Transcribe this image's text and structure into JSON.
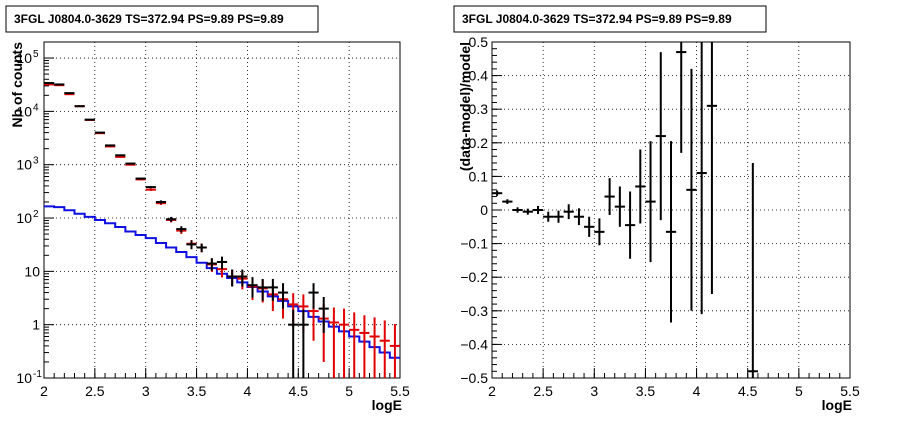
{
  "chart_data": [
    {
      "type": "scatter",
      "title": "3FGL J0804.0-3629 TS=372.94 PS=9.89 PS=9.89",
      "xlabel": "logE",
      "ylabel": "Nb of counts",
      "xlim": [
        2,
        5.5
      ],
      "ylim": [
        0.1,
        200000
      ],
      "log_y": true,
      "grid": true,
      "xticks": [
        "2",
        "2.5",
        "3",
        "3.5",
        "4",
        "4.5",
        "5",
        "5.5"
      ],
      "yticks": [
        {
          "value": 0.1,
          "label": "10",
          "exp": "-1"
        },
        {
          "value": 1,
          "label": "1",
          "exp": ""
        },
        {
          "value": 10,
          "label": "10",
          "exp": ""
        },
        {
          "value": 100,
          "label": "10",
          "exp": "2"
        },
        {
          "value": 1000,
          "label": "10",
          "exp": "3"
        },
        {
          "value": 10000,
          "label": "10",
          "exp": "4"
        },
        {
          "value": 100000,
          "label": "10",
          "exp": "5"
        }
      ],
      "colors": {
        "data": "#000000",
        "model": "#e00000",
        "background": "#1010e0"
      },
      "series": [
        {
          "role": "data",
          "x": [
            2.05,
            2.15,
            2.25,
            2.35,
            2.45,
            2.55,
            2.65,
            2.75,
            2.85,
            2.95,
            3.05,
            3.15,
            3.25,
            3.35,
            3.45,
            3.55,
            3.65,
            3.75,
            3.85,
            3.95,
            4.05,
            4.15,
            4.25,
            4.35,
            4.45,
            4.55,
            4.65,
            4.75
          ],
          "y": [
            34000,
            32000,
            22000,
            12500,
            7000,
            4000,
            2300,
            1500,
            1050,
            550,
            380,
            200,
            95,
            62,
            32,
            28,
            14,
            15,
            8,
            8,
            5.5,
            5,
            5,
            4,
            1,
            1,
            4,
            2
          ],
          "err": [
            180,
            180,
            150,
            110,
            80,
            60,
            45,
            35,
            30,
            22,
            19,
            14,
            10,
            8,
            6,
            5,
            3.7,
            3.9,
            2.8,
            2.8,
            2.3,
            2.2,
            2.2,
            2,
            0.9,
            0.9,
            2,
            1.3
          ]
        },
        {
          "role": "model",
          "x": [
            2.05,
            2.15,
            2.25,
            2.35,
            2.45,
            2.55,
            2.65,
            2.75,
            2.85,
            2.95,
            3.05,
            3.15,
            3.25,
            3.35,
            3.45,
            3.55,
            3.65,
            3.75,
            3.85,
            3.95,
            4.05,
            4.15,
            4.25,
            4.35,
            4.45,
            4.55,
            4.65,
            4.75,
            4.85,
            4.95,
            5.05,
            5.15,
            5.25,
            5.35,
            5.45
          ],
          "y": [
            32000,
            31000,
            21000,
            12500,
            6900,
            3900,
            2200,
            1400,
            1000,
            530,
            340,
            190,
            92,
            58,
            33,
            28,
            13.5,
            11,
            8,
            7.3,
            5.2,
            4.8,
            3.7,
            3,
            2.4,
            2.2,
            1.8,
            1.3,
            1.1,
            1,
            0.8,
            0.7,
            0.6,
            0.5,
            0.4
          ],
          "err": [
            180,
            180,
            145,
            110,
            80,
            60,
            45,
            35,
            30,
            22,
            18,
            14,
            9.5,
            7.6,
            5.7,
            5.3,
            3.7,
            3.3,
            2.8,
            2.7,
            2.3,
            2.2,
            1.9,
            1.7,
            1.5,
            1.5,
            1.3,
            1.1,
            1.0,
            1.0,
            0.9,
            0.8,
            0.77,
            0.7,
            0.63
          ]
        },
        {
          "role": "background",
          "type": "step",
          "x": [
            2.05,
            2.15,
            2.25,
            2.35,
            2.45,
            2.55,
            2.65,
            2.75,
            2.85,
            2.95,
            3.05,
            3.15,
            3.25,
            3.35,
            3.45,
            3.55,
            3.65,
            3.75,
            3.85,
            3.95,
            4.05,
            4.15,
            4.25,
            4.35,
            4.45,
            4.55,
            4.65,
            4.75,
            4.85,
            4.95,
            5.05,
            5.15,
            5.25,
            5.35,
            5.45
          ],
          "y": [
            165,
            160,
            140,
            120,
            105,
            92,
            80,
            68,
            56,
            48,
            42,
            34,
            28,
            23,
            18.5,
            14.5,
            11.5,
            9,
            7.5,
            6.2,
            5.1,
            4.2,
            3.4,
            2.8,
            2.2,
            1.8,
            1.4,
            1.15,
            0.92,
            0.75,
            0.6,
            0.48,
            0.38,
            0.3,
            0.24
          ]
        }
      ]
    },
    {
      "type": "scatter",
      "title": "3FGL J0804.0-3629 TS=372.94 PS=9.89 PS=9.89",
      "xlabel": "logE",
      "ylabel": "(data-model)/model",
      "xlim": [
        2,
        5.5
      ],
      "ylim": [
        -0.5,
        0.5
      ],
      "grid": true,
      "xticks": [
        "2",
        "2.5",
        "3",
        "3.5",
        "4",
        "4.5",
        "5",
        "5.5"
      ],
      "yticks": [
        "-0.5",
        "-0.4",
        "-0.3",
        "-0.2",
        "-0.1",
        "0",
        "0.1",
        "0.2",
        "0.3",
        "0.4",
        "0.5"
      ],
      "colors": {
        "data": "#000000"
      },
      "series": [
        {
          "role": "residual",
          "x": [
            2.05,
            2.15,
            2.25,
            2.35,
            2.45,
            2.55,
            2.65,
            2.75,
            2.85,
            2.95,
            3.05,
            3.15,
            3.25,
            3.35,
            3.45,
            3.55,
            3.65,
            3.75,
            3.85,
            3.95,
            4.05,
            4.15,
            4.55
          ],
          "y": [
            0.05,
            0.025,
            0.0,
            -0.005,
            0.0,
            -0.02,
            -0.02,
            -0.005,
            -0.02,
            -0.05,
            -0.065,
            0.04,
            0.01,
            -0.045,
            0.07,
            0.025,
            0.22,
            -0.065,
            0.47,
            0.06,
            0.11,
            0.31,
            -0.48
          ],
          "err": [
            0.008,
            0.007,
            0.008,
            0.009,
            0.012,
            0.015,
            0.018,
            0.022,
            0.025,
            0.03,
            0.04,
            0.055,
            0.06,
            0.1,
            0.11,
            0.18,
            0.25,
            0.27,
            0.3,
            0.36,
            0.42,
            0.56,
            0.62
          ]
        }
      ]
    }
  ]
}
